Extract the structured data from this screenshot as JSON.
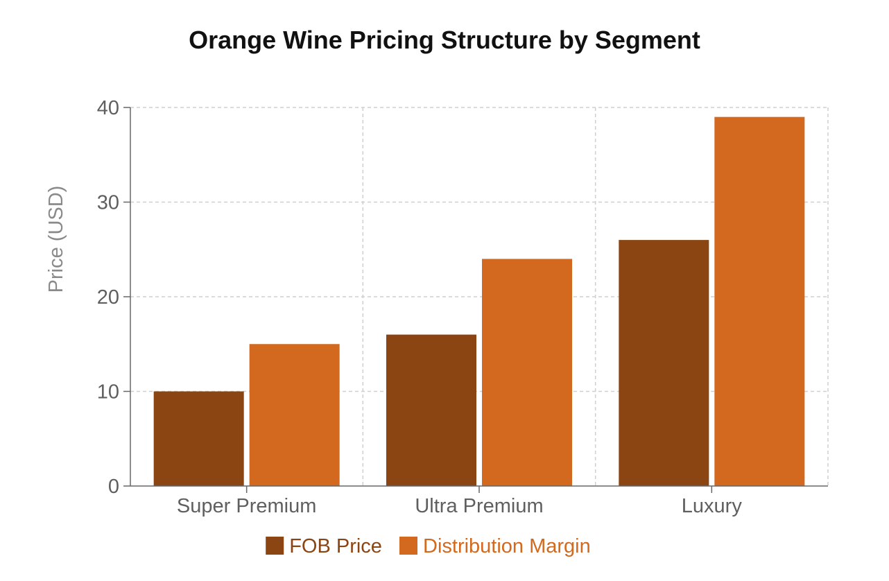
{
  "chart_data": {
    "type": "bar",
    "title": "Orange Wine Pricing Structure by Segment",
    "xlabel": "",
    "ylabel": "Price (USD)",
    "categories": [
      "Super Premium",
      "Ultra Premium",
      "Luxury"
    ],
    "series": [
      {
        "name": "FOB Price",
        "values": [
          10,
          16,
          26
        ],
        "color": "#8B4513"
      },
      {
        "name": "Distribution Margin",
        "values": [
          15,
          24,
          39
        ],
        "color": "#D2691E"
      }
    ],
    "ylim": [
      0,
      40
    ],
    "yticks": [
      0,
      10,
      20,
      30,
      40
    ],
    "grid": true,
    "legend_position": "bottom"
  }
}
